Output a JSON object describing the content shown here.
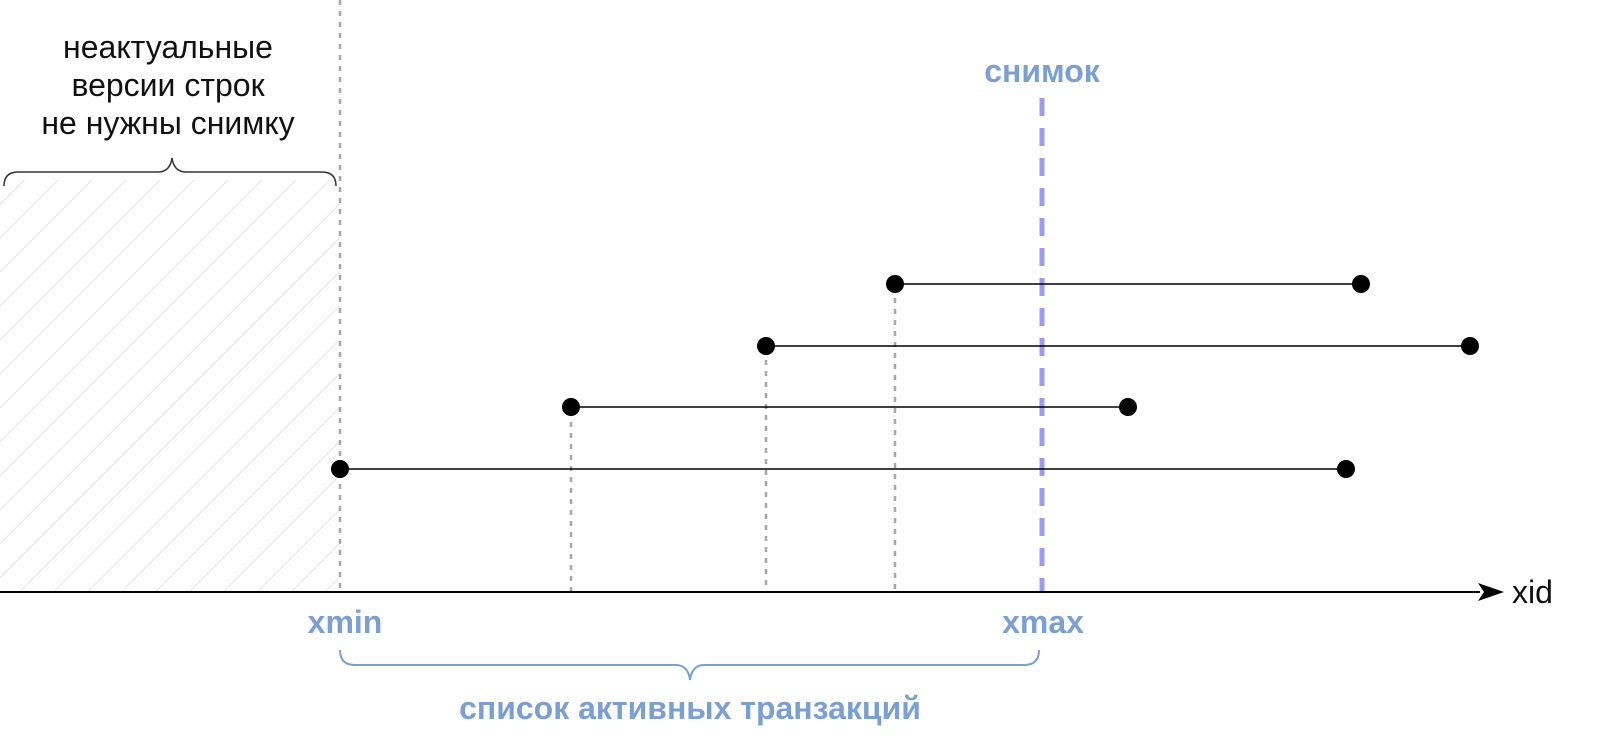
{
  "colors": {
    "accent_label": "#7b9fd1",
    "snapshot_line": "#9a9cf0",
    "guide_line": "#a6a6a6",
    "hatch": "#d9d9d9",
    "ink": "#000000"
  },
  "labels": {
    "obsolete_line1": "неактуальные",
    "obsolete_line2": "версии строк",
    "obsolete_line3": "не нужны снимку",
    "snapshot": "снимок",
    "xmin": "xmin",
    "xmax": "xmax",
    "axis": "xid",
    "active_list": "список активных транзакций"
  },
  "transactions": [
    {
      "start": "xmin",
      "end_after_xmax": true
    },
    {
      "start": "active-1",
      "end_after_xmax": true
    },
    {
      "start": "active-2",
      "end_after_xmax": true
    },
    {
      "start": "active-3",
      "end_after_xmax": true
    }
  ]
}
